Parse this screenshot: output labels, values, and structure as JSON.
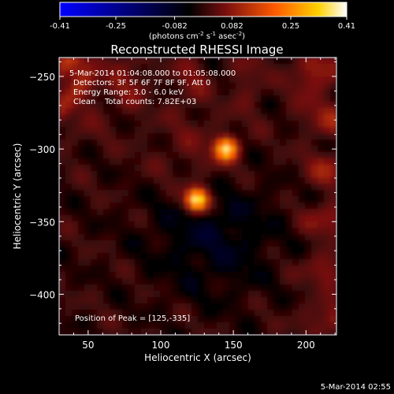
{
  "chart_data": {
    "type": "heatmap",
    "title": "Reconstructed RHESSI Image",
    "xlabel": "Heliocentric X (arcsec)",
    "ylabel": "Heliocentric Y (arcsec)",
    "xlim": [
      30,
      221
    ],
    "ylim": [
      -428,
      -237
    ],
    "x_ticks": [
      50,
      100,
      150,
      200
    ],
    "y_ticks": [
      -250,
      -300,
      -350,
      -400
    ],
    "colorbar": {
      "min": -0.41,
      "max": 0.41,
      "ticks": [
        "-0.41",
        "-0.25",
        "-0.082",
        "0.082",
        "0.25",
        "0.41"
      ],
      "units_prefix": "(photons cm",
      "units_exp1": "-2",
      "units_mid": " s",
      "units_exp2": "-1",
      "units_mid2": " asec",
      "units_exp3": "-2",
      "units_suffix": ")"
    },
    "annotations": {
      "time_range": "5-Mar-2014 01:04:08.000 to 01:05:08.000",
      "detectors": "Detectors: 3F 5F 6F 7F 8F 9F, Att 0",
      "energy": "Energy Range: 3.0 - 6.0 keV",
      "clean_label": "Clean",
      "total_counts": "Total counts: 7.82E+03",
      "peak": "Position of Peak = [125,-335]"
    },
    "sources": [
      {
        "x": 125,
        "y": -335,
        "peak": 0.41
      },
      {
        "x": 145,
        "y": -300,
        "peak": 0.33
      }
    ],
    "peak_position": [
      125,
      -335
    ]
  },
  "footer": {
    "timestamp": "5-Mar-2014 02:55"
  }
}
